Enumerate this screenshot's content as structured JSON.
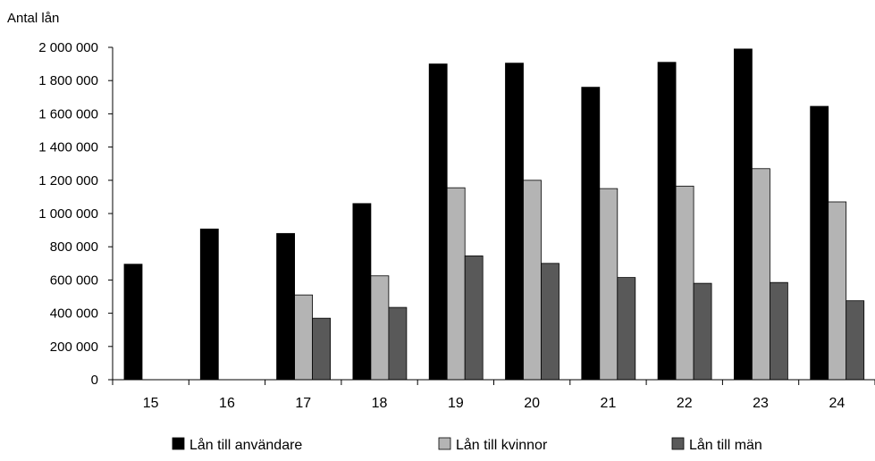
{
  "chart_data": {
    "type": "bar",
    "ylabel": "Antal lån",
    "ylim": [
      0,
      2000000
    ],
    "yticks": [
      0,
      200000,
      400000,
      600000,
      800000,
      1000000,
      1200000,
      1400000,
      1600000,
      1800000,
      2000000
    ],
    "ytick_labels": [
      "0",
      "200 000",
      "400 000",
      "600 000",
      "800 000",
      "1 000 000",
      "1 200 000",
      "1 400 000",
      "1 600 000",
      "1 800 000",
      "2 000 000"
    ],
    "categories": [
      "15",
      "16",
      "17",
      "18",
      "19",
      "20",
      "21",
      "22",
      "23",
      "24"
    ],
    "series": [
      {
        "name": "Lån till användare",
        "color": "#000000",
        "values": [
          695000,
          907000,
          880000,
          1060000,
          1900000,
          1905000,
          1760000,
          1910000,
          1990000,
          1645000
        ]
      },
      {
        "name": "Lån till kvinnor",
        "color": "#b4b4b4",
        "values": [
          null,
          null,
          510000,
          625000,
          1155000,
          1200000,
          1150000,
          1165000,
          1270000,
          1070000
        ]
      },
      {
        "name": "Lån till män",
        "color": "#595959",
        "values": [
          null,
          null,
          370000,
          435000,
          745000,
          700000,
          615000,
          580000,
          585000,
          475000
        ]
      }
    ],
    "grid": false,
    "legend_position": "bottom"
  }
}
